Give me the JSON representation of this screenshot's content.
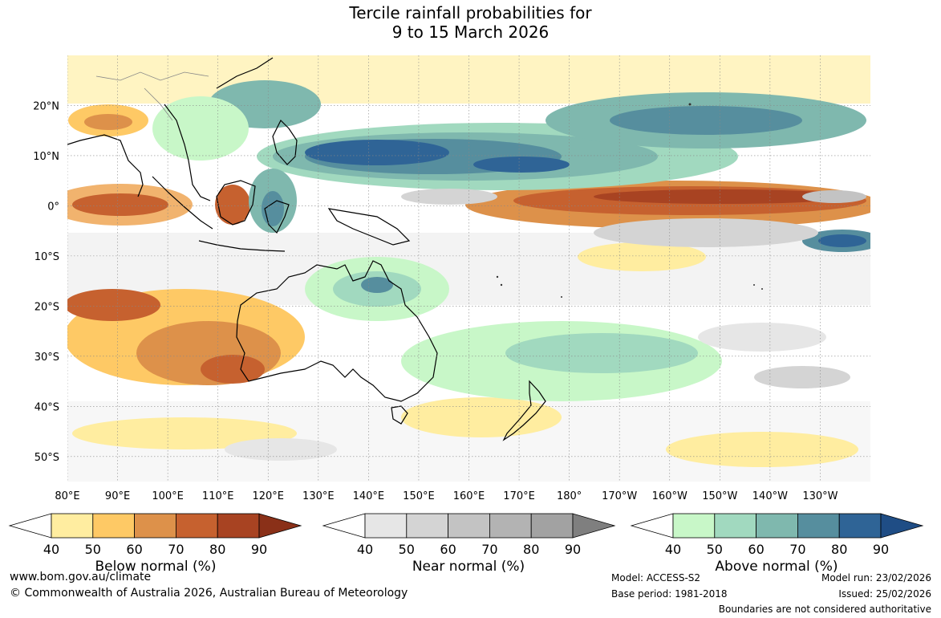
{
  "title": {
    "line1": "Tercile rainfall probabilities for",
    "line2": "9 to 15 March 2026"
  },
  "map": {
    "lat_labels": [
      "20°N",
      "10°N",
      "0°",
      "10°S",
      "20°S",
      "30°S",
      "40°S",
      "50°S"
    ],
    "lon_labels": [
      "80°E",
      "90°E",
      "100°E",
      "110°E",
      "120°E",
      "130°E",
      "140°E",
      "150°E",
      "160°E",
      "170°E",
      "180°",
      "170°W",
      "160°W",
      "150°W",
      "140°W",
      "130°W"
    ],
    "lon_range": [
      80,
      240
    ],
    "lat_range": [
      -55,
      30
    ]
  },
  "colorbars": [
    {
      "label": "Below normal (%)",
      "ticks": [
        "40",
        "50",
        "60",
        "70",
        "80",
        "90"
      ],
      "colors": [
        "#ffffff",
        "#ffeda0",
        "#fec965",
        "#dd914a",
        "#c6612f",
        "#a84322",
        "#8a3018"
      ]
    },
    {
      "label": "Near normal (%)",
      "ticks": [
        "40",
        "50",
        "60",
        "70",
        "80",
        "90"
      ],
      "colors": [
        "#ffffff",
        "#e6e6e6",
        "#d4d4d4",
        "#c3c3c3",
        "#b3b3b3",
        "#a2a2a2",
        "#7f7f7f"
      ]
    },
    {
      "label": "Above normal (%)",
      "ticks": [
        "40",
        "50",
        "60",
        "70",
        "80",
        "90"
      ],
      "colors": [
        "#ffffff",
        "#c8f7c8",
        "#a1d9bf",
        "#7fb8ae",
        "#568e9e",
        "#2f6496",
        "#1f4d85"
      ]
    }
  ],
  "footer": {
    "website": "www.bom.gov.au/climate",
    "copyright": "© Commonwealth of Australia 2026, Australian Bureau of Meteorology",
    "model": "Model: ACCESS-S2",
    "base_period": "Base period: 1981-2018",
    "model_run": "Model run: 23/02/2026",
    "issued": "Issued: 25/02/2026",
    "disclaimer": "Boundaries are not considered authoritative"
  }
}
